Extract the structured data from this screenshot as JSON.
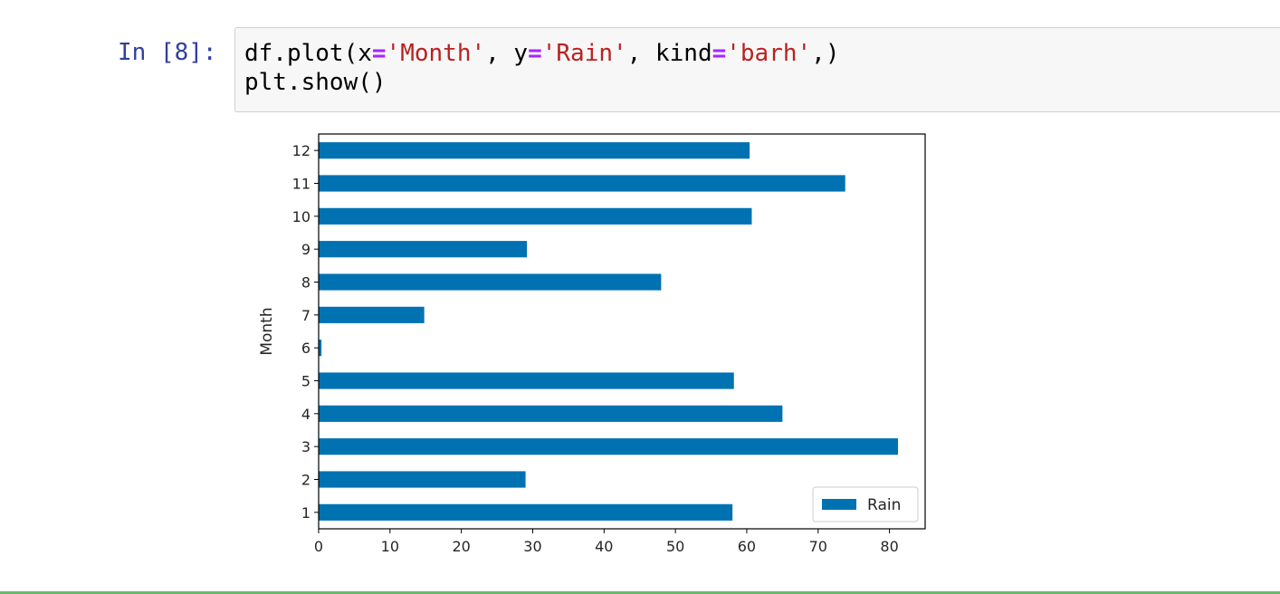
{
  "cell": {
    "prompt": "In [8]:",
    "code_lines": [
      [
        {
          "t": "df.plot(x",
          "c": ""
        },
        {
          "t": "=",
          "c": "op"
        },
        {
          "t": "'Month'",
          "c": "str"
        },
        {
          "t": ", y",
          "c": ""
        },
        {
          "t": "=",
          "c": "op"
        },
        {
          "t": "'Rain'",
          "c": "str"
        },
        {
          "t": ", kind",
          "c": ""
        },
        {
          "t": "=",
          "c": "op"
        },
        {
          "t": "'barh'",
          "c": "str"
        },
        {
          "t": ",)",
          "c": ""
        }
      ],
      [
        {
          "t": "plt.show()",
          "c": ""
        }
      ]
    ]
  },
  "chart_data": {
    "type": "bar",
    "orientation": "horizontal",
    "categories": [
      "1",
      "2",
      "3",
      "4",
      "5",
      "6",
      "7",
      "8",
      "9",
      "10",
      "11",
      "12"
    ],
    "series": [
      {
        "name": "Rain",
        "color": "#0072b2",
        "values": [
          58,
          29,
          81.2,
          65,
          58.2,
          0.4,
          14.8,
          48,
          29.2,
          60.7,
          73.8,
          60.4
        ]
      }
    ],
    "xlabel": "",
    "ylabel": "Month",
    "xlim": [
      0,
      85
    ],
    "xticks": [
      0,
      10,
      20,
      30,
      40,
      50,
      60,
      70,
      80
    ],
    "grid": false,
    "legend": "lower-right"
  },
  "colors": {
    "prompt": "#303f9f",
    "cell_border_active": "#66bb6a"
  }
}
